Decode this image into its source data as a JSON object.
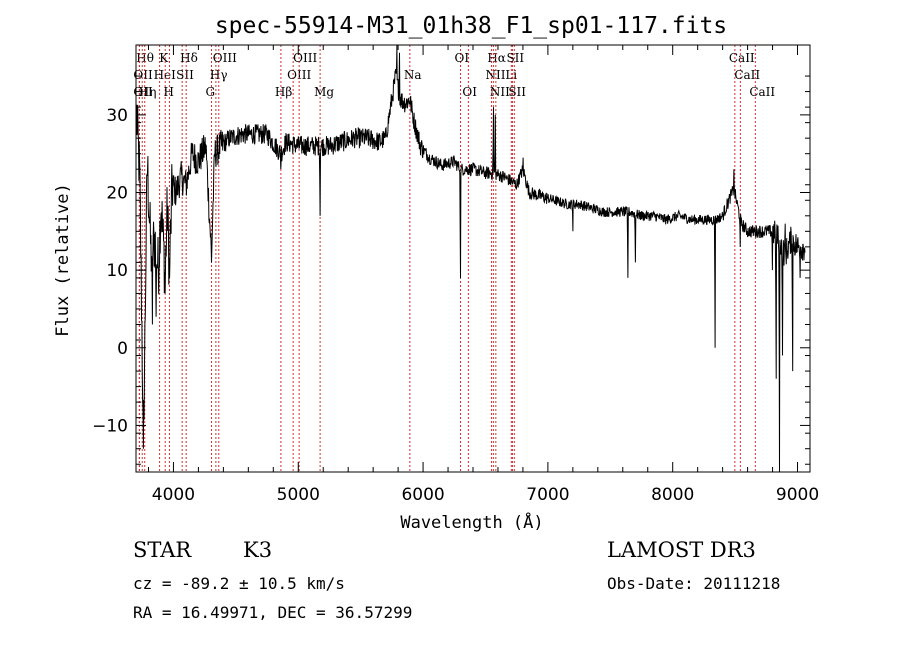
{
  "chart_data": {
    "type": "line",
    "title": "spec-55914-M31_01h38_F1_sp01-117.fits",
    "xlabel": "Wavelength (Å)",
    "ylabel": "Flux (relative)",
    "xlim": [
      3700,
      9100
    ],
    "ylim": [
      -16,
      39
    ],
    "xticks": [
      4000,
      5000,
      6000,
      7000,
      8000,
      9000
    ],
    "yticks": [
      -10,
      0,
      10,
      20,
      30
    ],
    "grid": false,
    "lines": [
      {
        "wave": 3750,
        "label": "Hθ",
        "row": 0
      },
      {
        "wave": 3727,
        "label": "OII",
        "row": 1
      },
      {
        "wave": 3727,
        "label": "OII",
        "row": 2
      },
      {
        "wave": 3770,
        "label": "Hη",
        "row": 2
      },
      {
        "wave": 3889,
        "label": "HeI",
        "row": 1
      },
      {
        "wave": 3934,
        "label": "K",
        "row": 0
      },
      {
        "wave": 3968,
        "label": "H",
        "row": 2
      },
      {
        "wave": 4070,
        "label": "SII",
        "row": 1
      },
      {
        "wave": 4102,
        "label": "Hδ",
        "row": 0
      },
      {
        "wave": 4305,
        "label": "G",
        "row": 2
      },
      {
        "wave": 4340,
        "label": "Hγ",
        "row": 1
      },
      {
        "wave": 4363,
        "label": "OIII",
        "row": 0
      },
      {
        "wave": 4861,
        "label": "Hβ",
        "row": 2
      },
      {
        "wave": 4959,
        "label": "OIII",
        "row": 1
      },
      {
        "wave": 5007,
        "label": "OIII",
        "row": 0
      },
      {
        "wave": 5175,
        "label": "Mg",
        "row": 2
      },
      {
        "wave": 5894,
        "label": "Na",
        "row": 1
      },
      {
        "wave": 6300,
        "label": "OI",
        "row": 0
      },
      {
        "wave": 6363,
        "label": "OI",
        "row": 2
      },
      {
        "wave": 6548,
        "label": "NII",
        "row": 1
      },
      {
        "wave": 6563,
        "label": "Hα",
        "row": 0
      },
      {
        "wave": 6583,
        "label": "NII",
        "row": 2
      },
      {
        "wave": 6707,
        "label": "Li",
        "row": 1
      },
      {
        "wave": 6716,
        "label": "SII",
        "row": 0
      },
      {
        "wave": 6731,
        "label": "SII",
        "row": 2
      },
      {
        "wave": 8498,
        "label": "CaII",
        "row": 0
      },
      {
        "wave": 8542,
        "label": "CaII",
        "row": 1
      },
      {
        "wave": 8662,
        "label": "CaII",
        "row": 2
      }
    ],
    "spectrum_anchors": [
      [
        3705,
        30
      ],
      [
        3730,
        22
      ],
      [
        3760,
        -12
      ],
      [
        3790,
        24
      ],
      [
        3820,
        12
      ],
      [
        3850,
        14
      ],
      [
        3880,
        10
      ],
      [
        3900,
        19
      ],
      [
        3934,
        9
      ],
      [
        3950,
        18
      ],
      [
        3968,
        10
      ],
      [
        3990,
        21
      ],
      [
        4020,
        20
      ],
      [
        4060,
        22
      ],
      [
        4102,
        21
      ],
      [
        4150,
        25
      ],
      [
        4200,
        24
      ],
      [
        4260,
        26
      ],
      [
        4305,
        12
      ],
      [
        4330,
        25
      ],
      [
        4380,
        26
      ],
      [
        4450,
        27
      ],
      [
        4550,
        27.5
      ],
      [
        4650,
        27.5
      ],
      [
        4750,
        27.5
      ],
      [
        4861,
        25
      ],
      [
        4900,
        26.5
      ],
      [
        5000,
        26
      ],
      [
        5100,
        26
      ],
      [
        5175,
        26
      ],
      [
        5250,
        26
      ],
      [
        5350,
        26.5
      ],
      [
        5450,
        27
      ],
      [
        5550,
        27
      ],
      [
        5650,
        26.5
      ],
      [
        5700,
        27
      ],
      [
        5740,
        31
      ],
      [
        5780,
        35
      ],
      [
        5820,
        32
      ],
      [
        5860,
        31.5
      ],
      [
        5894,
        32
      ],
      [
        5930,
        29
      ],
      [
        5980,
        26
      ],
      [
        6050,
        24.5
      ],
      [
        6150,
        23.5
      ],
      [
        6250,
        24
      ],
      [
        6300,
        23
      ],
      [
        6400,
        23
      ],
      [
        6500,
        22.5
      ],
      [
        6563,
        22.5
      ],
      [
        6650,
        22
      ],
      [
        6700,
        21.5
      ],
      [
        6750,
        21
      ],
      [
        6800,
        23
      ],
      [
        6850,
        20
      ],
      [
        6950,
        19.5
      ],
      [
        7050,
        19
      ],
      [
        7150,
        18.5
      ],
      [
        7250,
        18.5
      ],
      [
        7350,
        18
      ],
      [
        7450,
        17.5
      ],
      [
        7550,
        17.5
      ],
      [
        7650,
        17.5
      ],
      [
        7750,
        17
      ],
      [
        7850,
        17
      ],
      [
        7950,
        16.5
      ],
      [
        8050,
        17
      ],
      [
        8150,
        16.5
      ],
      [
        8250,
        16.5
      ],
      [
        8350,
        16.5
      ],
      [
        8400,
        17
      ],
      [
        8450,
        19
      ],
      [
        8490,
        20.5
      ],
      [
        8550,
        16
      ],
      [
        8600,
        15
      ],
      [
        8700,
        15
      ],
      [
        8800,
        15
      ],
      [
        8850,
        14
      ],
      [
        8900,
        12
      ],
      [
        8950,
        14
      ],
      [
        9000,
        13
      ],
      [
        9060,
        13
      ]
    ],
    "spectrum_dips": [
      [
        3760,
        -13
      ],
      [
        3830,
        3
      ],
      [
        3860,
        4
      ],
      [
        3934,
        7
      ],
      [
        3968,
        9
      ],
      [
        4305,
        11
      ],
      [
        4861,
        23
      ],
      [
        5175,
        17
      ],
      [
        6300,
        9
      ],
      [
        6563,
        21
      ],
      [
        7200,
        15
      ],
      [
        7640,
        9
      ],
      [
        7700,
        11
      ],
      [
        8340,
        0
      ],
      [
        8542,
        13
      ],
      [
        8800,
        10
      ],
      [
        8830,
        -4
      ],
      [
        8855,
        -16
      ],
      [
        8880,
        -1
      ],
      [
        8960,
        -3
      ],
      [
        9020,
        9
      ]
    ],
    "spectrum_spikes": [
      [
        5790,
        39
      ],
      [
        5810,
        38
      ],
      [
        6563,
        31
      ],
      [
        6580,
        30
      ],
      [
        6800,
        24.5
      ],
      [
        8490,
        23
      ],
      [
        8900,
        16
      ]
    ]
  },
  "info": {
    "object_class": "STAR",
    "subclass": "K3",
    "survey": "LAMOST DR3",
    "cz": "cz = -89.2 ± 10.5 km/s",
    "obs_date": "Obs-Date: 20111218",
    "coords": "RA =  16.49971, DEC =  36.57299"
  }
}
